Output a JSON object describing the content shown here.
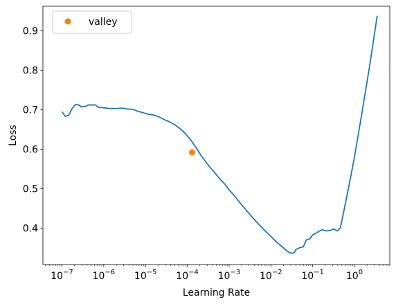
{
  "chart_data": {
    "type": "line",
    "title": "",
    "xlabel": "Learning Rate",
    "ylabel": "Loss",
    "x_scale": "log",
    "xlim": [
      3.5e-08,
      7
    ],
    "ylim": [
      0.308,
      0.962
    ],
    "x_ticks": [
      1e-07,
      1e-06,
      1e-05,
      0.0001,
      0.001,
      0.01,
      0.1,
      1
    ],
    "x_tick_labels": [
      {
        "base": "10",
        "exp": "−7"
      },
      {
        "base": "10",
        "exp": "−6"
      },
      {
        "base": "10",
        "exp": "−5"
      },
      {
        "base": "10",
        "exp": "−4"
      },
      {
        "base": "10",
        "exp": "−3"
      },
      {
        "base": "10",
        "exp": "−2"
      },
      {
        "base": "10",
        "exp": "−1"
      },
      {
        "base": "10",
        "exp": "0"
      }
    ],
    "y_ticks": [
      0.4,
      0.5,
      0.6,
      0.7,
      0.8,
      0.9
    ],
    "y_tick_labels": [
      "0.4",
      "0.5",
      "0.6",
      "0.7",
      "0.8",
      "0.9"
    ],
    "grid": false,
    "legend": {
      "placement": "top-left",
      "entries": [
        "valley"
      ]
    },
    "series": [
      {
        "color": "#1f77b4",
        "points": [
          [
            1e-07,
            0.695
          ],
          [
            1.2e-07,
            0.683
          ],
          [
            1.45e-07,
            0.686
          ],
          [
            1.75e-07,
            0.703
          ],
          [
            2.1e-07,
            0.713
          ],
          [
            2.5e-07,
            0.712
          ],
          [
            3e-07,
            0.707
          ],
          [
            3.6e-07,
            0.708
          ],
          [
            4.3e-07,
            0.712
          ],
          [
            5.2e-07,
            0.712
          ],
          [
            6.3e-07,
            0.712
          ],
          [
            7.5e-07,
            0.706
          ],
          [
            1e-06,
            0.705
          ],
          [
            1.4e-06,
            0.703
          ],
          [
            2e-06,
            0.703
          ],
          [
            2.7e-06,
            0.704
          ],
          [
            3.5e-06,
            0.702
          ],
          [
            5e-06,
            0.701
          ],
          [
            6.5e-06,
            0.696
          ],
          [
            8.5e-06,
            0.693
          ],
          [
            1.1e-05,
            0.689
          ],
          [
            1.5e-05,
            0.687
          ],
          [
            2e-05,
            0.683
          ],
          [
            2.8e-05,
            0.675
          ],
          [
            3.8e-05,
            0.669
          ],
          [
            5e-05,
            0.662
          ],
          [
            6.5e-05,
            0.653
          ],
          [
            8e-05,
            0.645
          ],
          [
            0.0001,
            0.634
          ],
          [
            0.00012,
            0.624
          ],
          [
            0.00016,
            0.605
          ],
          [
            0.00021,
            0.585
          ],
          [
            0.0003,
            0.563
          ],
          [
            0.00043,
            0.543
          ],
          [
            0.0006,
            0.525
          ],
          [
            0.0008,
            0.511
          ],
          [
            0.001,
            0.497
          ],
          [
            0.0013,
            0.484
          ],
          [
            0.0018,
            0.465
          ],
          [
            0.0025,
            0.447
          ],
          [
            0.0035,
            0.429
          ],
          [
            0.005,
            0.411
          ],
          [
            0.007,
            0.395
          ],
          [
            0.01,
            0.379
          ],
          [
            0.014,
            0.364
          ],
          [
            0.02,
            0.35
          ],
          [
            0.025,
            0.341
          ],
          [
            0.03,
            0.337
          ],
          [
            0.035,
            0.337
          ],
          [
            0.04,
            0.346
          ],
          [
            0.05,
            0.351
          ],
          [
            0.06,
            0.353
          ],
          [
            0.07,
            0.37
          ],
          [
            0.085,
            0.373
          ],
          [
            0.1,
            0.383
          ],
          [
            0.12,
            0.387
          ],
          [
            0.14,
            0.392
          ],
          [
            0.17,
            0.396
          ],
          [
            0.21,
            0.393
          ],
          [
            0.26,
            0.394
          ],
          [
            0.32,
            0.398
          ],
          [
            0.39,
            0.393
          ],
          [
            0.46,
            0.401
          ],
          [
            0.55,
            0.44
          ],
          [
            0.7,
            0.495
          ],
          [
            1.0,
            0.58
          ],
          [
            1.5,
            0.69
          ],
          [
            2.3,
            0.81
          ],
          [
            3.5,
            0.938
          ]
        ]
      }
    ],
    "markers": [
      {
        "label": "valley",
        "x": 0.00013,
        "y": 0.592,
        "color": "#ff7f0e"
      }
    ]
  }
}
